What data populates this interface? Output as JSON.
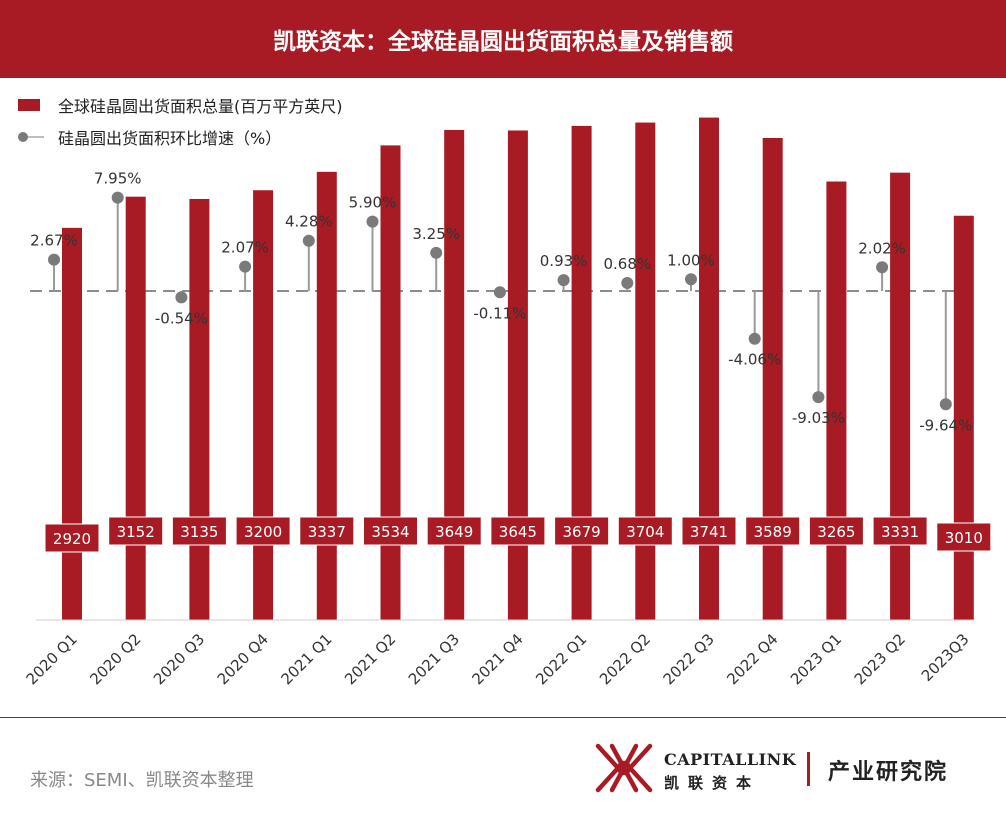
{
  "header": {
    "title": "凯联资本：全球硅晶圆出货面积总量及销售额"
  },
  "colors": {
    "accent": "#a81b24",
    "bar": "#a81b24",
    "marker": "#7a7a7a",
    "stem": "#999999",
    "label_bg": "#a81b24"
  },
  "legend": {
    "bar_label": "全球硅晶圆出货面积总量(百万平方英尺)",
    "line_label": "硅晶圆出货面积环比增速（%）"
  },
  "chart_data": {
    "type": "bar",
    "categories": [
      "2020 Q1",
      "2020 Q2",
      "2020 Q3",
      "2020 Q4",
      "2021 Q1",
      "2021 Q2",
      "2021 Q3",
      "2021 Q4",
      "2022 Q1",
      "2022 Q2",
      "2022 Q3",
      "2022 Q4",
      "2023 Q1",
      "2023 Q2",
      "2023Q3"
    ],
    "series": [
      {
        "name": "全球硅晶圆出货面积总量(百万平方英尺)",
        "type": "bar",
        "values": [
          2920,
          3152,
          3135,
          3200,
          3337,
          3534,
          3649,
          3645,
          3679,
          3704,
          3741,
          3589,
          3265,
          3331,
          3010
        ]
      },
      {
        "name": "硅晶圆出货面积环比增速（%）",
        "type": "lollipop",
        "values": [
          2.67,
          7.95,
          -0.54,
          2.07,
          4.28,
          5.9,
          3.25,
          -0.11,
          0.93,
          0.68,
          1.0,
          -4.06,
          -9.03,
          2.02,
          -9.64
        ],
        "labels": [
          "2.67%",
          "7.95%",
          "-0.54%",
          "2.07%",
          "4.28%",
          "5.90%",
          "3.25%",
          "-0.11%",
          "0.93%",
          "0.68%",
          "1.00%",
          "-4.06%",
          "-9.03%",
          "2.02%",
          "-9.64%"
        ]
      }
    ],
    "legend_position": "top-left",
    "grid": false
  },
  "footer": {
    "source": "来源：SEMI、凯联资本整理",
    "brand_en": "CAPITALLINK",
    "brand_cn": "凯联资本",
    "brand_division": "产业研究院"
  }
}
